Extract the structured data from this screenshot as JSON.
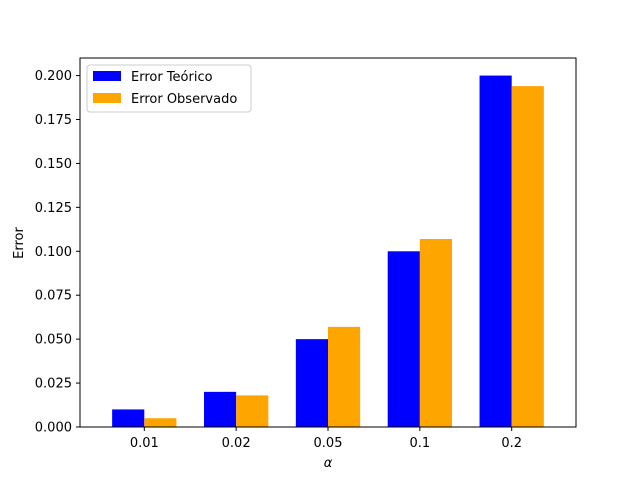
{
  "chart_data": {
    "type": "bar",
    "categories": [
      "0.01",
      "0.02",
      "0.05",
      "0.1",
      "0.2"
    ],
    "series": [
      {
        "name": "Error Teórico",
        "color": "#0000ff",
        "values": [
          0.01,
          0.02,
          0.05,
          0.1,
          0.2
        ]
      },
      {
        "name": "Error Observado",
        "color": "#ffa500",
        "values": [
          0.005,
          0.018,
          0.057,
          0.107,
          0.194
        ]
      }
    ],
    "xlabel": "α",
    "ylabel": "Error",
    "ylim": [
      0,
      0.21
    ],
    "yticks": [
      0.0,
      0.025,
      0.05,
      0.075,
      0.1,
      0.125,
      0.15,
      0.175,
      0.2
    ],
    "ytick_labels": [
      "0.000",
      "0.025",
      "0.050",
      "0.075",
      "0.100",
      "0.125",
      "0.150",
      "0.175",
      "0.200"
    ],
    "grid": false,
    "legend_position": "top-left"
  }
}
